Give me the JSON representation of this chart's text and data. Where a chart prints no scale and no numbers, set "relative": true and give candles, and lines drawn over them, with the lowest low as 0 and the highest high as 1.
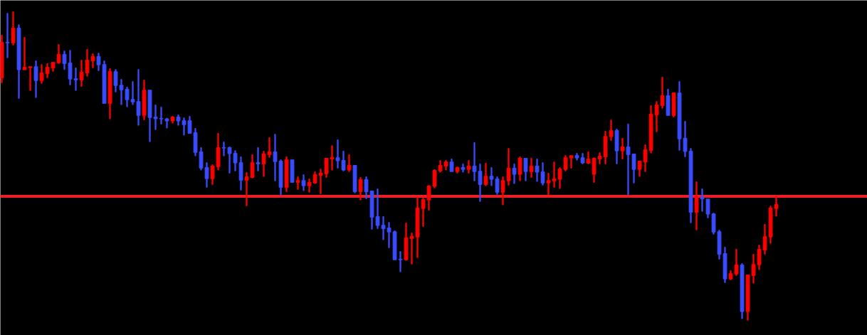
{
  "chart_data": {
    "type": "candlestick",
    "relative": true,
    "categories": [
      null,
      null,
      null,
      null,
      null,
      null,
      null,
      null,
      null,
      null,
      null,
      null,
      null,
      null,
      null,
      null,
      null,
      null,
      null,
      null,
      null,
      null,
      null,
      null,
      null,
      null,
      null,
      null,
      null,
      null,
      null,
      null,
      null,
      null,
      null,
      null,
      null,
      null,
      null,
      null,
      null,
      null,
      null,
      null,
      null,
      null,
      null,
      null,
      null,
      null,
      null,
      null,
      null,
      null,
      null,
      null,
      null,
      null,
      null,
      null,
      null,
      null,
      null,
      null,
      null,
      null,
      null,
      null,
      null,
      null,
      null,
      null,
      null,
      null,
      null,
      null,
      null,
      null,
      null,
      null,
      null,
      null,
      null,
      null,
      null,
      null,
      null,
      null,
      null,
      null,
      null,
      null,
      null,
      null,
      null,
      null,
      null,
      null,
      null,
      null,
      null,
      null,
      null,
      null,
      null,
      null,
      null,
      null,
      null,
      null,
      null,
      null,
      null,
      null,
      null,
      null,
      null,
      null,
      null,
      null,
      null,
      null,
      null,
      null,
      null,
      null,
      null,
      null,
      null,
      null,
      null,
      null,
      null,
      null,
      null,
      null,
      null
    ],
    "ohlc": [
      [
        0.786,
        0.924,
        0.77,
        0.901
      ],
      [
        0.901,
        0.995,
        0.851,
        0.899
      ],
      [
        0.899,
        1.0,
        0.892,
        0.947
      ],
      [
        0.947,
        0.958,
        0.719,
        0.812
      ],
      [
        0.812,
        0.917,
        0.812,
        0.82
      ],
      [
        0.819,
        0.822,
        0.745,
        0.822
      ],
      [
        0.822,
        0.841,
        0.722,
        0.777
      ],
      [
        0.777,
        0.829,
        0.768,
        0.802
      ],
      [
        0.8,
        0.832,
        0.786,
        0.82
      ],
      [
        0.818,
        0.836,
        0.807,
        0.836
      ],
      [
        0.835,
        0.894,
        0.832,
        0.862
      ],
      [
        0.862,
        0.873,
        0.813,
        0.832
      ],
      [
        0.834,
        0.875,
        0.763,
        0.782
      ],
      [
        0.783,
        0.818,
        0.745,
        0.779
      ],
      [
        0.779,
        0.843,
        0.758,
        0.804
      ],
      [
        0.802,
        0.878,
        0.791,
        0.843
      ],
      [
        0.841,
        0.864,
        0.818,
        0.855
      ],
      [
        0.855,
        0.866,
        0.809,
        0.828
      ],
      [
        0.829,
        0.841,
        0.703,
        0.703
      ],
      [
        0.703,
        0.816,
        0.653,
        0.806
      ],
      [
        0.806,
        0.813,
        0.74,
        0.761
      ],
      [
        0.762,
        0.781,
        0.699,
        0.747
      ],
      [
        0.749,
        0.756,
        0.692,
        0.715
      ],
      [
        0.716,
        0.774,
        0.699,
        0.708
      ],
      [
        0.709,
        0.813,
        0.632,
        0.664
      ],
      [
        0.664,
        0.779,
        0.65,
        0.746
      ],
      [
        0.746,
        0.746,
        0.579,
        0.657
      ],
      [
        0.659,
        0.698,
        0.618,
        0.653
      ],
      [
        0.654,
        0.691,
        0.636,
        0.653
      ],
      [
        0.653,
        0.655,
        0.623,
        0.646
      ],
      [
        0.646,
        0.661,
        0.639,
        0.659
      ],
      [
        0.659,
        0.666,
        0.632,
        0.646
      ],
      [
        0.647,
        0.656,
        0.6,
        0.634
      ],
      [
        0.647,
        0.661,
        0.606,
        0.606
      ],
      [
        0.608,
        0.622,
        0.533,
        0.544
      ],
      [
        0.546,
        0.56,
        0.487,
        0.493
      ],
      [
        0.495,
        0.511,
        0.431,
        0.459
      ],
      [
        0.459,
        0.504,
        0.44,
        0.5
      ],
      [
        0.498,
        0.606,
        0.487,
        0.56
      ],
      [
        0.56,
        0.578,
        0.533,
        0.558
      ],
      [
        0.56,
        0.562,
        0.477,
        0.54
      ],
      [
        0.541,
        0.55,
        0.484,
        0.51
      ],
      [
        0.511,
        0.53,
        0.422,
        0.454
      ],
      [
        0.454,
        0.479,
        0.371,
        0.465
      ],
      [
        0.463,
        0.537,
        0.461,
        0.511
      ],
      [
        0.511,
        0.56,
        0.484,
        0.507
      ],
      [
        0.507,
        0.548,
        0.466,
        0.539
      ],
      [
        0.537,
        0.592,
        0.528,
        0.546
      ],
      [
        0.546,
        0.603,
        0.452,
        0.514
      ],
      [
        0.516,
        0.52,
        0.406,
        0.431
      ],
      [
        0.431,
        0.53,
        0.417,
        0.52
      ],
      [
        0.52,
        0.52,
        0.447,
        0.447
      ],
      [
        0.447,
        0.465,
        0.424,
        0.453
      ],
      [
        0.453,
        0.472,
        0.42,
        0.436
      ],
      [
        0.436,
        0.458,
        0.415,
        0.447
      ],
      [
        0.445,
        0.481,
        0.443,
        0.472
      ],
      [
        0.47,
        0.49,
        0.41,
        0.477
      ],
      [
        0.475,
        0.525,
        0.463,
        0.525
      ],
      [
        0.523,
        0.566,
        0.487,
        0.528
      ],
      [
        0.527,
        0.585,
        0.493,
        0.517
      ],
      [
        0.518,
        0.548,
        0.484,
        0.487
      ],
      [
        0.487,
        0.537,
        0.482,
        0.502
      ],
      [
        0.502,
        0.502,
        0.413,
        0.417
      ],
      [
        0.417,
        0.463,
        0.39,
        0.456
      ],
      [
        0.456,
        0.465,
        0.394,
        0.417
      ],
      [
        0.419,
        0.419,
        0.295,
        0.334
      ],
      [
        0.336,
        0.426,
        0.297,
        0.307
      ],
      [
        0.308,
        0.336,
        0.261,
        0.297
      ],
      [
        0.299,
        0.317,
        0.235,
        0.286
      ],
      [
        0.287,
        0.29,
        0.196,
        0.196
      ],
      [
        0.198,
        0.223,
        0.157,
        0.196
      ],
      [
        0.196,
        0.315,
        0.194,
        0.267
      ],
      [
        0.265,
        0.283,
        0.182,
        0.272
      ],
      [
        0.27,
        0.399,
        0.203,
        0.364
      ],
      [
        0.362,
        0.397,
        0.304,
        0.391
      ],
      [
        0.39,
        0.437,
        0.357,
        0.435
      ],
      [
        0.434,
        0.488,
        0.429,
        0.486
      ],
      [
        0.484,
        0.518,
        0.48,
        0.502
      ],
      [
        0.5,
        0.518,
        0.487,
        0.513
      ],
      [
        0.513,
        0.523,
        0.482,
        0.482
      ],
      [
        0.482,
        0.497,
        0.477,
        0.495
      ],
      [
        0.495,
        0.507,
        0.48,
        0.489
      ],
      [
        0.489,
        0.518,
        0.477,
        0.5
      ],
      [
        0.5,
        0.576,
        0.452,
        0.482
      ],
      [
        0.483,
        0.507,
        0.385,
        0.44
      ],
      [
        0.44,
        0.509,
        0.436,
        0.467
      ],
      [
        0.467,
        0.495,
        0.436,
        0.457
      ],
      [
        0.458,
        0.465,
        0.408,
        0.415
      ],
      [
        0.415,
        0.465,
        0.374,
        0.453
      ],
      [
        0.452,
        0.557,
        0.438,
        0.493
      ],
      [
        0.493,
        0.507,
        0.443,
        0.473
      ],
      [
        0.473,
        0.53,
        0.452,
        0.525
      ],
      [
        0.525,
        0.525,
        0.452,
        0.482
      ],
      [
        0.482,
        0.525,
        0.463,
        0.5
      ],
      [
        0.5,
        0.523,
        0.45,
        0.48
      ],
      [
        0.481,
        0.511,
        0.438,
        0.445
      ],
      [
        0.445,
        0.477,
        0.407,
        0.453
      ],
      [
        0.452,
        0.513,
        0.431,
        0.458
      ],
      [
        0.457,
        0.495,
        0.427,
        0.49
      ],
      [
        0.489,
        0.534,
        0.484,
        0.527
      ],
      [
        0.526,
        0.534,
        0.493,
        0.534
      ],
      [
        0.534,
        0.541,
        0.519,
        0.526
      ],
      [
        0.527,
        0.541,
        0.507,
        0.51
      ],
      [
        0.509,
        0.546,
        0.507,
        0.523
      ],
      [
        0.473,
        0.527,
        0.447,
        0.525
      ],
      [
        0.523,
        0.543,
        0.507,
        0.532
      ],
      [
        0.53,
        0.613,
        0.507,
        0.596
      ],
      [
        0.595,
        0.649,
        0.583,
        0.615
      ],
      [
        0.615,
        0.62,
        0.507,
        0.549
      ],
      [
        0.549,
        0.59,
        0.523,
        0.562
      ],
      [
        0.562,
        0.636,
        0.407,
        0.537
      ],
      [
        0.539,
        0.539,
        0.445,
        0.489
      ],
      [
        0.489,
        0.516,
        0.466,
        0.516
      ],
      [
        0.513,
        0.569,
        0.482,
        0.553
      ],
      [
        0.551,
        0.696,
        0.542,
        0.668
      ],
      [
        0.666,
        0.709,
        0.611,
        0.698
      ],
      [
        0.696,
        0.788,
        0.687,
        0.728
      ],
      [
        0.728,
        0.749,
        0.664,
        0.664
      ],
      [
        0.664,
        0.737,
        0.659,
        0.737
      ],
      [
        0.737,
        0.774,
        0.551,
        0.588
      ],
      [
        0.59,
        0.645,
        0.53,
        0.547
      ],
      [
        0.548,
        0.557,
        0.316,
        0.35
      ],
      [
        0.35,
        0.449,
        0.293,
        0.4
      ],
      [
        0.399,
        0.426,
        0.353,
        0.393
      ],
      [
        0.393,
        0.393,
        0.332,
        0.344
      ],
      [
        0.345,
        0.347,
        0.279,
        0.286
      ],
      [
        0.287,
        0.292,
        0.198,
        0.214
      ],
      [
        0.216,
        0.237,
        0.122,
        0.134
      ],
      [
        0.134,
        0.161,
        0.131,
        0.151
      ],
      [
        0.15,
        0.23,
        0.145,
        0.179
      ],
      [
        0.179,
        0.184,
        0.005,
        0.028
      ],
      [
        0.028,
        0.147,
        0.0,
        0.147
      ],
      [
        0.145,
        0.214,
        0.12,
        0.181
      ],
      [
        0.18,
        0.244,
        0.164,
        0.23
      ],
      [
        0.228,
        0.311,
        0.214,
        0.271
      ],
      [
        0.27,
        0.37,
        0.249,
        0.364
      ],
      [
        0.362,
        0.402,
        0.337,
        0.375
      ]
    ],
    "colors": [
      "#ff0000",
      "#3a4cff",
      "#ff0000",
      "#3a4cff",
      "#ff0000",
      "#ff0000",
      "#3a4cff",
      "#ff0000",
      "#ff0000",
      "#ff0000",
      "#ff0000",
      "#3a4cff",
      "#3a4cff",
      "#3a4cff",
      "#ff0000",
      "#ff0000",
      "#ff0000",
      "#3a4cff",
      "#3a4cff",
      "#ff0000",
      "#3a4cff",
      "#3a4cff",
      "#3a4cff",
      "#3a4cff",
      "#3a4cff",
      "#ff0000",
      "#3a4cff",
      "#3a4cff",
      "#3a4cff",
      "#3a4cff",
      "#ff0000",
      "#3a4cff",
      "#3a4cff",
      "#3a4cff",
      "#3a4cff",
      "#3a4cff",
      "#3a4cff",
      "#ff0000",
      "#ff0000",
      "#3a4cff",
      "#3a4cff",
      "#3a4cff",
      "#3a4cff",
      "#ff0000",
      "#ff0000",
      "#3a4cff",
      "#ff0000",
      "#ff0000",
      "#3a4cff",
      "#3a4cff",
      "#ff0000",
      "#3a4cff",
      "#ff0000",
      "#3a4cff",
      "#ff0000",
      "#ff0000",
      "#ff0000",
      "#ff0000",
      "#ff0000",
      "#3a4cff",
      "#3a4cff",
      "#ff0000",
      "#3a4cff",
      "#ff0000",
      "#3a4cff",
      "#3a4cff",
      "#3a4cff",
      "#3a4cff",
      "#3a4cff",
      "#3a4cff",
      "#3a4cff",
      "#ff0000",
      "#ff0000",
      "#ff0000",
      "#ff0000",
      "#ff0000",
      "#ff0000",
      "#ff0000",
      "#ff0000",
      "#3a4cff",
      "#ff0000",
      "#3a4cff",
      "#ff0000",
      "#3a4cff",
      "#3a4cff",
      "#ff0000",
      "#3a4cff",
      "#3a4cff",
      "#ff0000",
      "#ff0000",
      "#3a4cff",
      "#ff0000",
      "#3a4cff",
      "#ff0000",
      "#3a4cff",
      "#3a4cff",
      "#ff0000",
      "#ff0000",
      "#ff0000",
      "#ff0000",
      "#ff0000",
      "#3a4cff",
      "#3a4cff",
      "#ff0000",
      "#ff0000",
      "#ff0000",
      "#ff0000",
      "#ff0000",
      "#3a4cff",
      "#ff0000",
      "#3a4cff",
      "#3a4cff",
      "#ff0000",
      "#ff0000",
      "#ff0000",
      "#ff0000",
      "#ff0000",
      "#3a4cff",
      "#ff0000",
      "#3a4cff",
      "#3a4cff",
      "#3a4cff",
      "#ff0000",
      "#3a4cff",
      "#3a4cff",
      "#3a4cff",
      "#3a4cff",
      "#3a4cff",
      "#ff0000",
      "#ff0000",
      "#3a4cff",
      "#ff0000",
      "#ff0000",
      "#ff0000",
      "#ff0000",
      "#ff0000",
      "#ff0000"
    ],
    "ref_lines": [
      {
        "axis": "y",
        "value": 0.402,
        "color": "#ee1c24"
      }
    ]
  }
}
